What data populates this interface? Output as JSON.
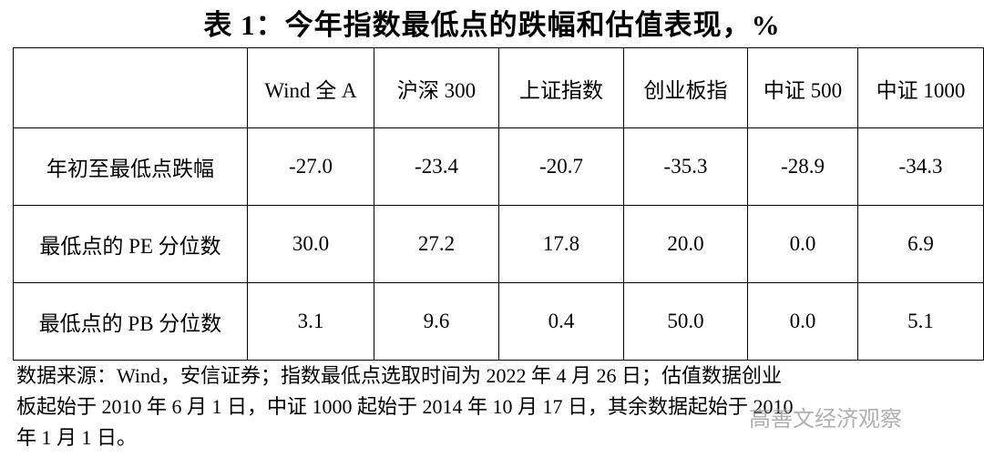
{
  "title": "表 1：今年指数最低点的跌幅和估值表现，%",
  "table": {
    "header": [
      "",
      "Wind 全 A",
      "沪深 300",
      "上证指数",
      "创业板指",
      "中证 500",
      "中证 1000"
    ],
    "rows": [
      [
        "年初至最低点跌幅",
        "-27.0",
        "-23.4",
        "-20.7",
        "-35.3",
        "-28.9",
        "-34.3"
      ],
      [
        "最低点的 PE 分位数",
        "30.0",
        "27.2",
        "17.8",
        "20.0",
        "0.0",
        "6.9"
      ],
      [
        "最低点的 PB 分位数",
        "3.1",
        "9.6",
        "0.4",
        "50.0",
        "0.0",
        "5.1"
      ]
    ]
  },
  "footnote": [
    "数据来源：Wind，安信证券；指数最低点选取时间为 2022 年 4 月 26 日；估值数据创业",
    "板起始于 2010 年 6 月 1 日，中证 1000 起始于 2014 年 10 月 17 日，其余数据起始于 2010",
    "年 1 月 1 日。"
  ],
  "watermark": "高善文经济观察"
}
